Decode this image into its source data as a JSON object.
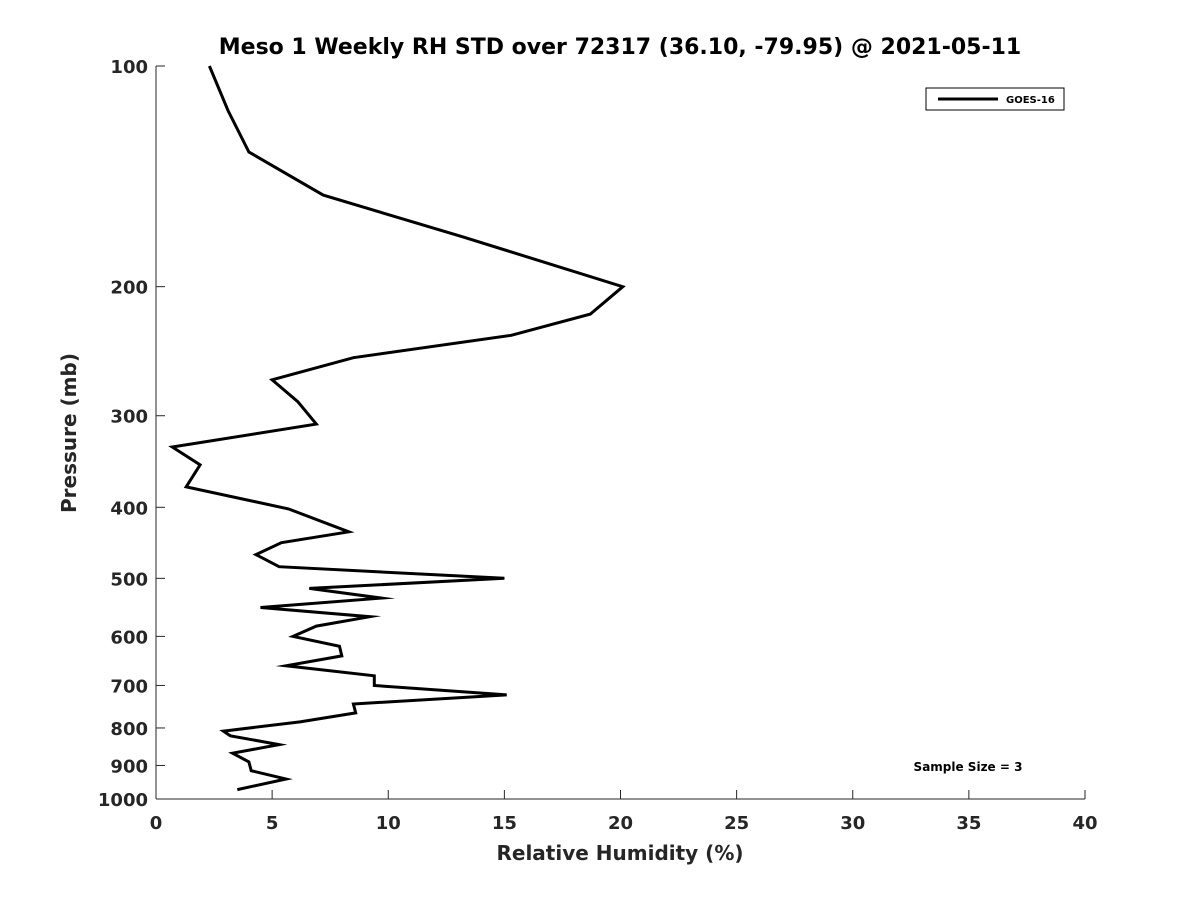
{
  "chart_data": {
    "type": "line",
    "title": "Meso 1 Weekly RH STD over 72317 (36.10, -79.95) @ 2021-05-11",
    "xlabel": "Relative Humidity (%)",
    "ylabel": "Pressure (mb)",
    "xlim": [
      0,
      40
    ],
    "ylim": [
      100,
      1000
    ],
    "y_scale": "log",
    "y_reversed": true,
    "x_ticks": [
      0,
      5,
      10,
      15,
      20,
      25,
      30,
      35,
      40
    ],
    "y_ticks": [
      100,
      200,
      300,
      400,
      500,
      600,
      700,
      800,
      900,
      1000
    ],
    "grid": false,
    "legend_position": "top-right",
    "annotation": "Sample Size = 3",
    "series": [
      {
        "name": "GOES-16",
        "color": "#000000",
        "x": [
          2.3,
          3.1,
          4.0,
          7.2,
          13.2,
          20.1,
          18.7,
          15.3,
          8.5,
          5.0,
          6.1,
          6.9,
          0.7,
          1.9,
          1.3,
          5.7,
          8.3,
          5.4,
          4.3,
          5.3,
          15.0,
          6.6,
          9.7,
          4.5,
          9.2,
          6.9,
          5.9,
          7.9,
          8.0,
          5.6,
          9.4,
          9.4,
          15.1,
          8.5,
          8.6,
          6.2,
          2.9,
          3.2,
          5.3,
          3.3,
          4.0,
          4.1,
          5.6,
          3.5
        ],
        "y": [
          100,
          115,
          131,
          150,
          171,
          200,
          218,
          233,
          250,
          268,
          287,
          308,
          331,
          350,
          375,
          402,
          432,
          447,
          464,
          482,
          500,
          516,
          532,
          548,
          564,
          581,
          600,
          619,
          638,
          658,
          679,
          700,
          721,
          742,
          763,
          785,
          808,
          820,
          843,
          866,
          890,
          915,
          939,
          971
        ]
      }
    ]
  }
}
